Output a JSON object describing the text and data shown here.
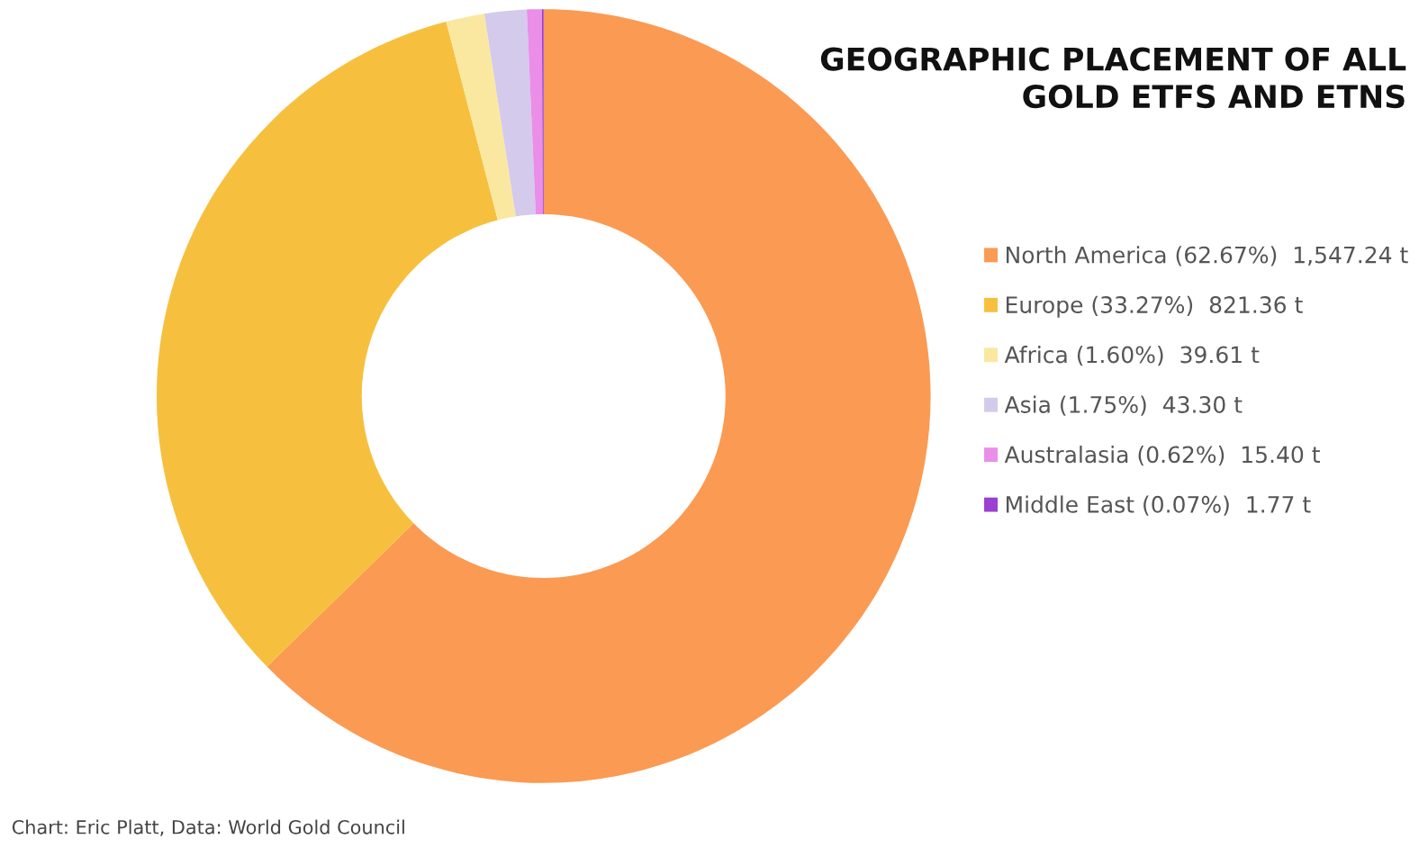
{
  "chart_data": {
    "type": "donut",
    "title": "GEOGRAPHIC PLACEMENT OF ALL\nGOLD ETFS AND ETNS",
    "categories": [
      "North America (62.67%)  1,547.24 t",
      "Europe (33.27%)  821.36 t",
      "Africa (1.60%)  39.61 t",
      "Asia (1.75%)  43.30 t",
      "Australasia (0.62%)  15.40 t",
      "Middle East (0.07%)  1.77 t"
    ],
    "values": [
      1547.24,
      821.36,
      39.61,
      43.3,
      15.4,
      1.77
    ],
    "colors": [
      "#fb9a52",
      "#f6c03e",
      "#fbe8a0",
      "#d4caec",
      "#ea8ee8",
      "#9b40d0"
    ],
    "legend": "right",
    "annotations": [
      "Chart: Eric Platt, Data: World Gold Council"
    ]
  }
}
